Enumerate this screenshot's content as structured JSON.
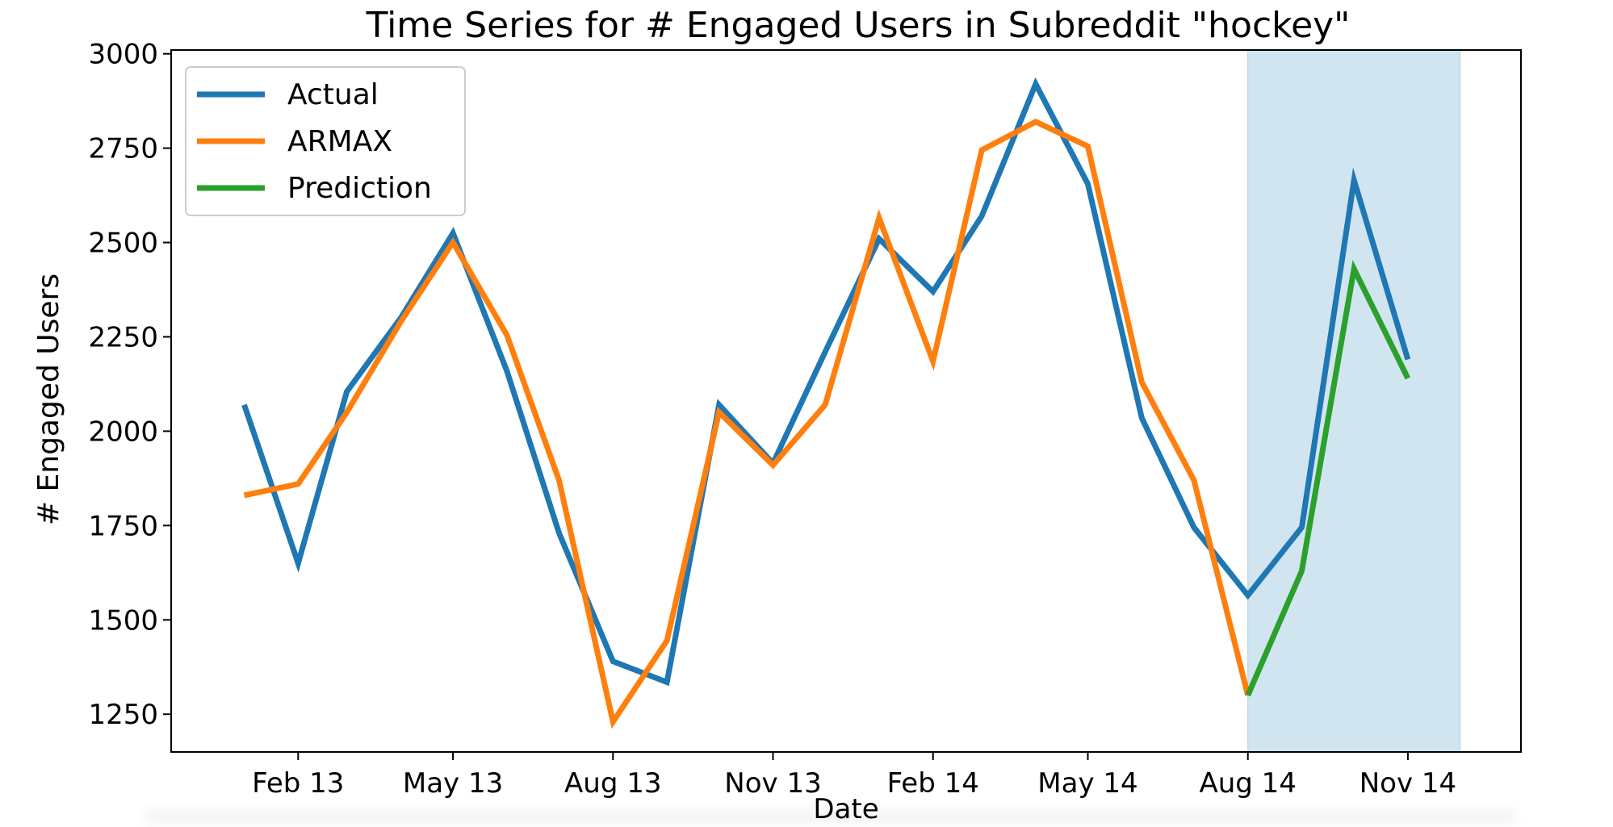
{
  "chart_data": {
    "type": "line",
    "title": "Time Series for # Engaged Users in Subreddit \"hockey\"",
    "xlabel": "Date",
    "ylabel": "# Engaged Users",
    "x": [
      "2013-01-01",
      "2013-02-01",
      "2013-03-01",
      "2013-04-01",
      "2013-05-01",
      "2013-06-01",
      "2013-07-01",
      "2013-08-01",
      "2013-09-01",
      "2013-10-01",
      "2013-11-01",
      "2013-12-01",
      "2014-01-01",
      "2014-02-01",
      "2014-03-01",
      "2014-04-01",
      "2014-05-01",
      "2014-06-01",
      "2014-07-01",
      "2014-08-01",
      "2014-09-01",
      "2014-10-01",
      "2014-11-01"
    ],
    "xlim": [
      "2012-11-20",
      "2015-01-05"
    ],
    "ylim": [
      1150,
      3010
    ],
    "x_ticks": [
      {
        "date": "2013-02-01",
        "label": "Feb 13"
      },
      {
        "date": "2013-05-01",
        "label": "May 13"
      },
      {
        "date": "2013-08-01",
        "label": "Aug 13"
      },
      {
        "date": "2013-11-01",
        "label": "Nov 13"
      },
      {
        "date": "2014-02-01",
        "label": "Feb 14"
      },
      {
        "date": "2014-05-01",
        "label": "May 14"
      },
      {
        "date": "2014-08-01",
        "label": "Aug 14"
      },
      {
        "date": "2014-11-01",
        "label": "Nov 14"
      }
    ],
    "y_ticks": [
      1250,
      1500,
      1750,
      2000,
      2250,
      2500,
      2750,
      3000
    ],
    "shaded_region": {
      "from": "2014-08-01",
      "to": "2014-12-01",
      "color": "#d1e5f0"
    },
    "grid": false,
    "legend_position": "top-left",
    "series": [
      {
        "name": "Actual",
        "color": "#1f77b4",
        "x": [
          "2013-01-01",
          "2013-02-01",
          "2013-03-01",
          "2013-04-01",
          "2013-05-01",
          "2013-06-01",
          "2013-07-01",
          "2013-08-01",
          "2013-09-01",
          "2013-10-01",
          "2013-11-01",
          "2013-12-01",
          "2014-01-01",
          "2014-02-01",
          "2014-03-01",
          "2014-04-01",
          "2014-05-01",
          "2014-06-01",
          "2014-07-01",
          "2014-08-01",
          "2014-09-01",
          "2014-10-01",
          "2014-11-01"
        ],
        "values": [
          2070,
          1650,
          2105,
          2300,
          2525,
          2160,
          1730,
          1390,
          1335,
          2070,
          1915,
          2210,
          2510,
          2370,
          2570,
          2920,
          2655,
          2035,
          1745,
          1565,
          1745,
          2665,
          2190
        ]
      },
      {
        "name": "ARMAX",
        "color": "#ff7f0e",
        "x": [
          "2013-01-01",
          "2013-02-01",
          "2013-03-01",
          "2013-04-01",
          "2013-05-01",
          "2013-06-01",
          "2013-07-01",
          "2013-08-01",
          "2013-09-01",
          "2013-10-01",
          "2013-11-01",
          "2013-12-01",
          "2014-01-01",
          "2014-02-01",
          "2014-03-01",
          "2014-04-01",
          "2014-05-01",
          "2014-06-01",
          "2014-07-01",
          "2014-08-01"
        ],
        "values": [
          1830,
          1860,
          2050,
          2290,
          2500,
          2255,
          1870,
          1230,
          1445,
          2050,
          1910,
          2070,
          2565,
          2185,
          2745,
          2820,
          2755,
          2130,
          1870,
          1300
        ]
      },
      {
        "name": "Prediction",
        "color": "#2ca02c",
        "x": [
          "2014-08-01",
          "2014-09-01",
          "2014-10-01",
          "2014-11-01"
        ],
        "values": [
          1300,
          1630,
          2430,
          2140
        ]
      }
    ]
  }
}
